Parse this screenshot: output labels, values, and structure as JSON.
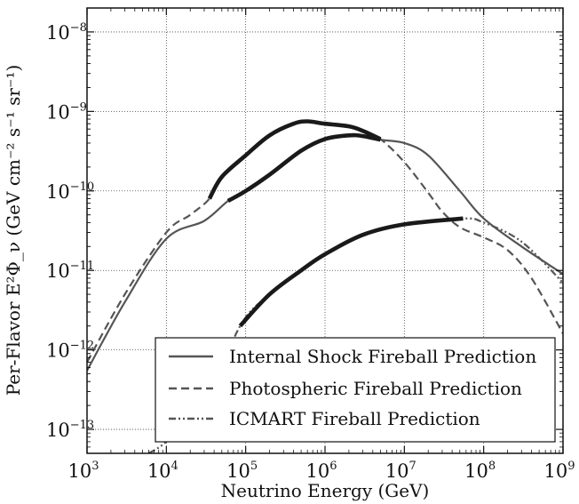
{
  "chart_data": {
    "type": "line",
    "title": "",
    "xlabel": "Neutrino Energy (GeV)",
    "ylabel": "Per-Flavor E²Φ_ν (GeV cm⁻² s⁻¹ sr⁻¹)",
    "x_scale": "log",
    "y_scale": "log",
    "xlim": [
      1000.0,
      1000000000.0
    ],
    "ylim": [
      5e-14,
      2e-08
    ],
    "x_ticks": [
      {
        "base": "10",
        "exp": "3"
      },
      {
        "base": "10",
        "exp": "4"
      },
      {
        "base": "10",
        "exp": "5"
      },
      {
        "base": "10",
        "exp": "6"
      },
      {
        "base": "10",
        "exp": "7"
      },
      {
        "base": "10",
        "exp": "8"
      },
      {
        "base": "10",
        "exp": "9"
      }
    ],
    "y_ticks": [
      {
        "base": "10",
        "exp": "−13"
      },
      {
        "base": "10",
        "exp": "−12"
      },
      {
        "base": "10",
        "exp": "−11"
      },
      {
        "base": "10",
        "exp": "−10"
      },
      {
        "base": "10",
        "exp": "−9"
      },
      {
        "base": "10",
        "exp": "−8"
      }
    ],
    "grid": true,
    "legend_position": "lower-right",
    "series": [
      {
        "name": "Internal Shock Fireball Prediction",
        "style": "solid",
        "color": "#555555",
        "points": [
          [
            1000.0,
            5.5e-13
          ],
          [
            3000.0,
            4e-12
          ],
          [
            10000.0,
            2.5e-11
          ],
          [
            30000.0,
            4.2e-11
          ],
          [
            60000.0,
            7.5e-11
          ],
          [
            100000.0,
            1e-10
          ],
          [
            200000.0,
            1.6e-10
          ],
          [
            500000.0,
            3.2e-10
          ],
          [
            1000000.0,
            4.5e-10
          ],
          [
            2000000.0,
            5e-10
          ],
          [
            3000000.0,
            4.9e-10
          ],
          [
            5000000.0,
            4.4e-10
          ],
          [
            10000000.0,
            4e-10
          ],
          [
            20000000.0,
            2.8e-10
          ],
          [
            50000000.0,
            1e-10
          ],
          [
            100000000.0,
            4.5e-11
          ],
          [
            300000000.0,
            2e-11
          ],
          [
            1000000000.0,
            9e-12
          ]
        ]
      },
      {
        "name": "Photospheric Fireball Prediction",
        "style": "dashed",
        "color": "#555555",
        "points": [
          [
            1000.0,
            7e-13
          ],
          [
            3000.0,
            5e-12
          ],
          [
            10000.0,
            3e-11
          ],
          [
            20000.0,
            5e-11
          ],
          [
            35000.0,
            8e-11
          ],
          [
            50000.0,
            1.5e-10
          ],
          [
            100000.0,
            2.8e-10
          ],
          [
            200000.0,
            5e-10
          ],
          [
            400000.0,
            7e-10
          ],
          [
            600000.0,
            7.5e-10
          ],
          [
            1000000.0,
            7e-10
          ],
          [
            2000000.0,
            6.5e-10
          ],
          [
            3000000.0,
            5.7e-10
          ],
          [
            5000000.0,
            4.5e-10
          ],
          [
            10000000.0,
            2.3e-10
          ],
          [
            20000000.0,
            9.5e-11
          ],
          [
            30000000.0,
            5.5e-11
          ],
          [
            50000000.0,
            3.5e-11
          ],
          [
            100000000.0,
            2.6e-11
          ],
          [
            200000000.0,
            1.8e-11
          ],
          [
            400000000.0,
            8e-12
          ],
          [
            1000000000.0,
            1.6e-12
          ]
        ]
      },
      {
        "name": "ICMART Fireball Prediction",
        "style": "dashdotdot",
        "color": "#555555",
        "points": [
          [
            6000.0,
            5e-14
          ],
          [
            10000.0,
            7e-14
          ],
          [
            30000.0,
            2e-13
          ],
          [
            85000.0,
            2e-12
          ],
          [
            200000.0,
            5e-12
          ],
          [
            500000.0,
            1e-11
          ],
          [
            1000000.0,
            1.6e-11
          ],
          [
            3000000.0,
            2.8e-11
          ],
          [
            10000000.0,
            3.8e-11
          ],
          [
            55000000.0,
            4.5e-11
          ],
          [
            100000000.0,
            4e-11
          ],
          [
            300000000.0,
            2.3e-11
          ],
          [
            1000000000.0,
            7e-12
          ]
        ]
      }
    ],
    "highlighted_segments": [
      {
        "series": "Photospheric Fireball Prediction",
        "x_range": [
          35000.0,
          5000000.0
        ]
      },
      {
        "series": "Internal Shock Fireball Prediction",
        "x_range": [
          35000.0,
          5000000.0
        ]
      },
      {
        "series": "ICMART Fireball Prediction",
        "x_range": [
          85000.0,
          55000000.0
        ]
      }
    ]
  }
}
